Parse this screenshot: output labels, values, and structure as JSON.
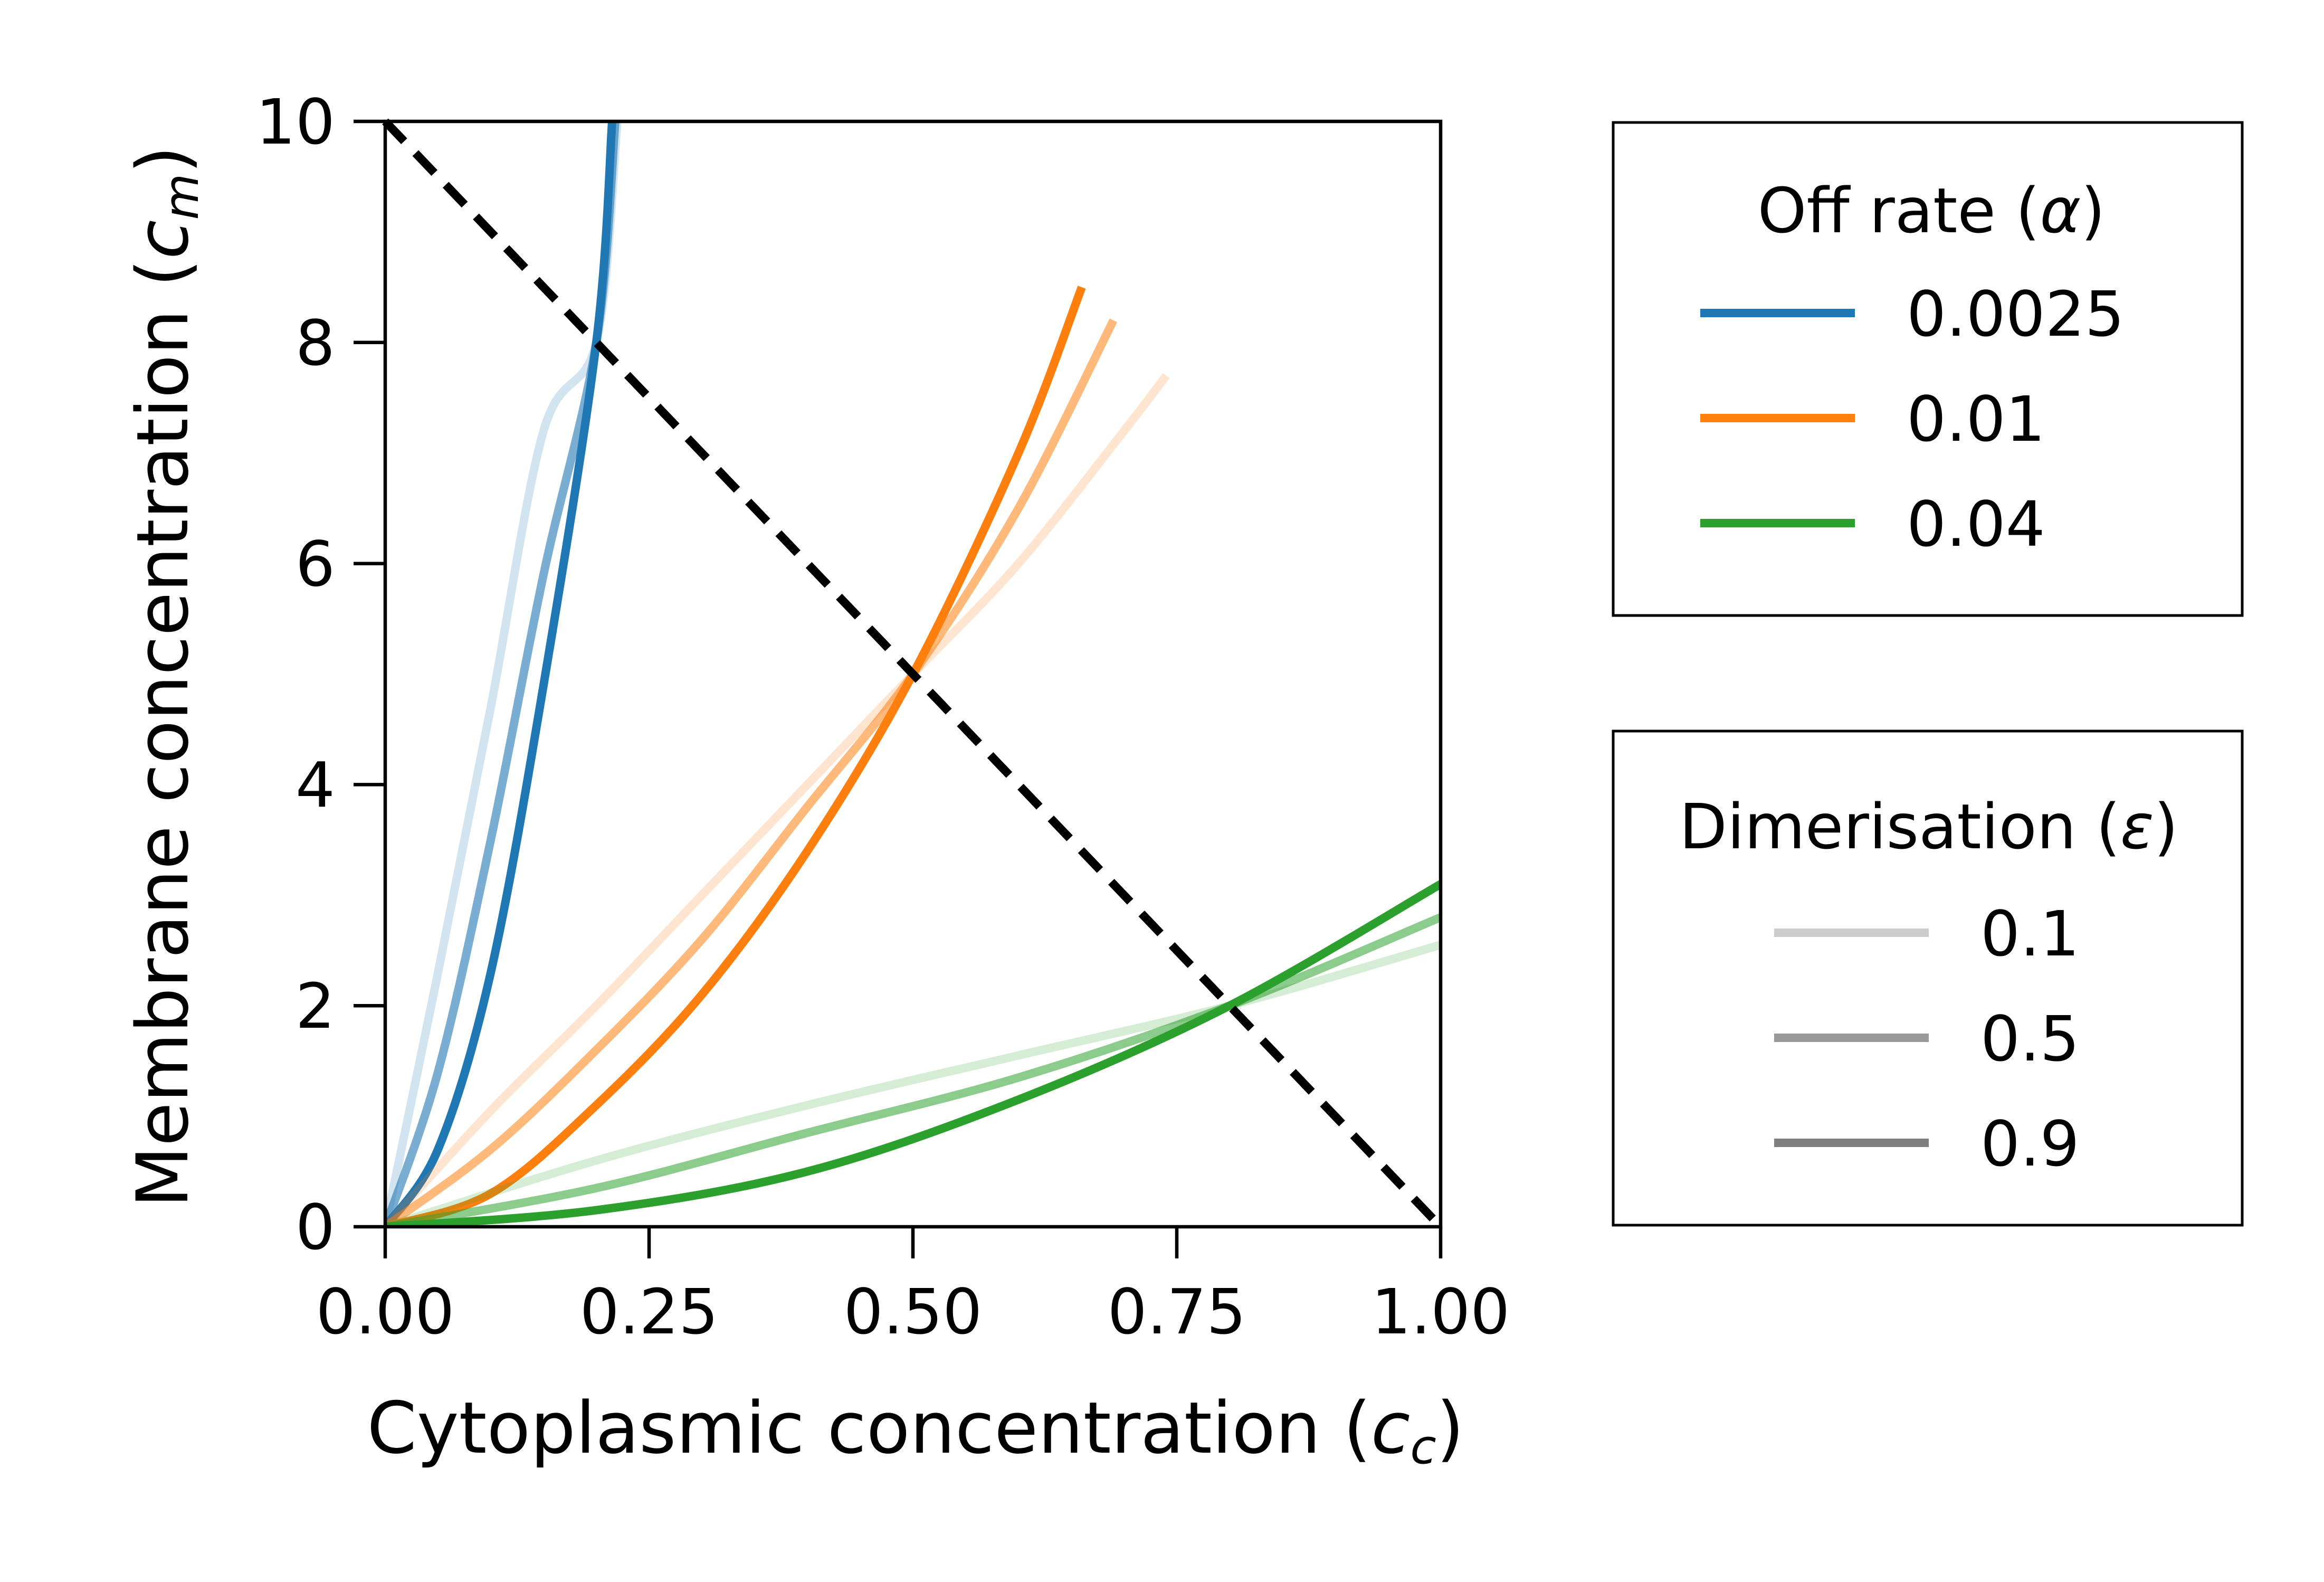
{
  "chart_data": {
    "type": "line",
    "xlabel": {
      "main": "Cytoplasmic concentration (",
      "math": "c",
      "sub": "c",
      "close": ")"
    },
    "ylabel": {
      "main": "Membrane concentration (",
      "math": "c",
      "sub": "m",
      "close": ")"
    },
    "xlim": [
      0,
      1
    ],
    "ylim": [
      0,
      10
    ],
    "x_ticks": [
      0,
      0.25,
      0.5,
      0.75,
      1.0
    ],
    "x_tick_labels": [
      "0.00",
      "0.25",
      "0.50",
      "0.75",
      "1.00"
    ],
    "y_ticks": [
      0,
      2,
      4,
      6,
      8,
      10
    ],
    "y_tick_labels": [
      "0",
      "2",
      "4",
      "6",
      "8",
      "10"
    ],
    "grid": false,
    "reference_line": {
      "style": "dashed",
      "color": "#000000",
      "points": [
        [
          0,
          10
        ],
        [
          1,
          0
        ]
      ]
    },
    "legends": [
      {
        "title": "Off rate (",
        "title_symbol": "α",
        "title_close": ")",
        "placement": "right-top",
        "entries": [
          {
            "label": "0.0025",
            "color": "#1f77b4"
          },
          {
            "label": "0.01",
            "color": "#ff7f0e"
          },
          {
            "label": "0.04",
            "color": "#2ca02c"
          }
        ]
      },
      {
        "title": "Dimerisation (",
        "title_symbol": "ε",
        "title_close": ")",
        "placement": "right-bottom",
        "entries": [
          {
            "label": "0.1",
            "color": "#cccccc"
          },
          {
            "label": "0.5",
            "color": "#999999"
          },
          {
            "label": "0.9",
            "color": "#7f7f7f"
          }
        ]
      }
    ],
    "series": [
      {
        "off_rate": 0.0025,
        "dimerisation": 0.1,
        "color": "#1f77b4",
        "opacity": 0.2,
        "points": [
          [
            0,
            0
          ],
          [
            0.05,
            2.3
          ],
          [
            0.1,
            4.7
          ],
          [
            0.15,
            7.2
          ],
          [
            0.2,
            8.0
          ],
          [
            0.22,
            10
          ]
        ]
      },
      {
        "off_rate": 0.0025,
        "dimerisation": 0.5,
        "color": "#1f77b4",
        "opacity": 0.6,
        "points": [
          [
            0,
            0
          ],
          [
            0.05,
            1.4
          ],
          [
            0.1,
            3.5
          ],
          [
            0.15,
            5.9
          ],
          [
            0.2,
            8.0
          ],
          [
            0.218,
            10
          ]
        ]
      },
      {
        "off_rate": 0.0025,
        "dimerisation": 0.9,
        "color": "#1f77b4",
        "opacity": 1.0,
        "points": [
          [
            0,
            0
          ],
          [
            0.05,
            0.7
          ],
          [
            0.1,
            2.3
          ],
          [
            0.15,
            4.9
          ],
          [
            0.2,
            8.0
          ],
          [
            0.215,
            10
          ]
        ]
      },
      {
        "off_rate": 0.01,
        "dimerisation": 0.1,
        "color": "#ff7f0e",
        "opacity": 0.2,
        "points": [
          [
            0,
            0
          ],
          [
            0.1,
            1.05
          ],
          [
            0.2,
            2.0
          ],
          [
            0.3,
            3.0
          ],
          [
            0.4,
            4.0
          ],
          [
            0.5,
            5.0
          ],
          [
            0.6,
            6.0
          ],
          [
            0.7,
            7.2
          ],
          [
            0.74,
            7.7
          ]
        ]
      },
      {
        "off_rate": 0.01,
        "dimerisation": 0.5,
        "color": "#ff7f0e",
        "opacity": 0.55,
        "points": [
          [
            0,
            0
          ],
          [
            0.1,
            0.7
          ],
          [
            0.2,
            1.6
          ],
          [
            0.3,
            2.6
          ],
          [
            0.4,
            3.8
          ],
          [
            0.5,
            5.0
          ],
          [
            0.6,
            6.5
          ],
          [
            0.69,
            8.2
          ]
        ]
      },
      {
        "off_rate": 0.01,
        "dimerisation": 0.9,
        "color": "#ff7f0e",
        "opacity": 1.0,
        "points": [
          [
            0,
            0
          ],
          [
            0.1,
            0.3
          ],
          [
            0.2,
            1.1
          ],
          [
            0.3,
            2.1
          ],
          [
            0.4,
            3.4
          ],
          [
            0.5,
            5.0
          ],
          [
            0.6,
            7.0
          ],
          [
            0.66,
            8.5
          ]
        ]
      },
      {
        "off_rate": 0.04,
        "dimerisation": 0.1,
        "color": "#2ca02c",
        "opacity": 0.2,
        "points": [
          [
            0,
            0
          ],
          [
            0.2,
            0.6
          ],
          [
            0.4,
            1.1
          ],
          [
            0.6,
            1.55
          ],
          [
            0.8,
            2.0
          ],
          [
            1.0,
            2.55
          ]
        ]
      },
      {
        "off_rate": 0.04,
        "dimerisation": 0.5,
        "color": "#2ca02c",
        "opacity": 0.55,
        "points": [
          [
            0,
            0
          ],
          [
            0.2,
            0.35
          ],
          [
            0.4,
            0.85
          ],
          [
            0.6,
            1.35
          ],
          [
            0.8,
            2.0
          ],
          [
            1.0,
            2.8
          ]
        ]
      },
      {
        "off_rate": 0.04,
        "dimerisation": 0.9,
        "color": "#2ca02c",
        "opacity": 1.0,
        "points": [
          [
            0,
            0
          ],
          [
            0.2,
            0.15
          ],
          [
            0.4,
            0.5
          ],
          [
            0.6,
            1.15
          ],
          [
            0.8,
            2.0
          ],
          [
            1.0,
            3.1
          ]
        ]
      }
    ]
  }
}
